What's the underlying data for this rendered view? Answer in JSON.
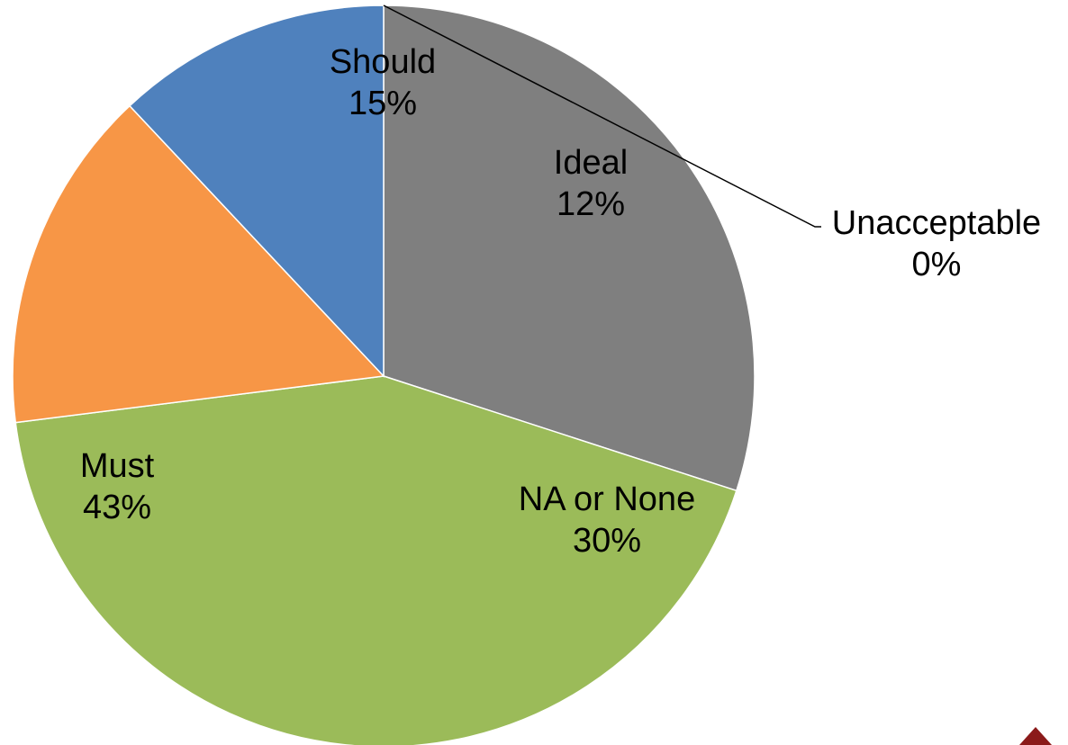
{
  "chart_data": {
    "type": "pie",
    "title": "",
    "start_angle_deg": 90,
    "direction": "clockwise",
    "slices": [
      {
        "label": "NA or None",
        "value": 30,
        "display": "30%",
        "color": "#7f7f7f"
      },
      {
        "label": "Must",
        "value": 43,
        "display": "43%",
        "color": "#9bbb59"
      },
      {
        "label": "Should",
        "value": 15,
        "display": "15%",
        "color": "#f79646"
      },
      {
        "label": "Ideal",
        "value": 12,
        "display": "12%",
        "color": "#4f81bd"
      },
      {
        "label": "Unacceptable",
        "value": 0,
        "display": "0%",
        "color": "#c0504d"
      }
    ]
  }
}
